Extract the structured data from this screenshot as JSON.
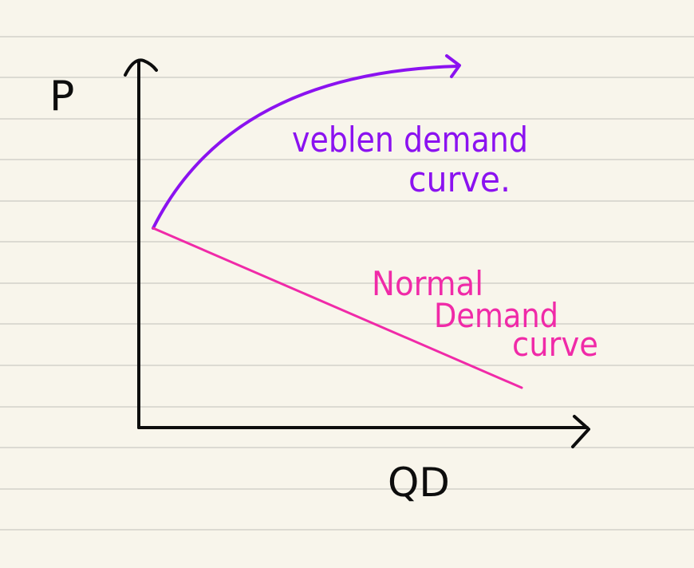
{
  "axes": {
    "y_label": "P",
    "x_label": "QD"
  },
  "curves": {
    "veblen": {
      "label_line1": "veblen demand",
      "label_line2": "curve.",
      "color": "#8b12f0"
    },
    "normal": {
      "label_line1": "Normal",
      "label_line2": "Demand",
      "label_line3": "curve",
      "color": "#f02aa8"
    }
  },
  "colors": {
    "paper": "#f8f5eb",
    "rule_lines": "#dcdad2",
    "axis_ink": "#0d0d0d"
  }
}
